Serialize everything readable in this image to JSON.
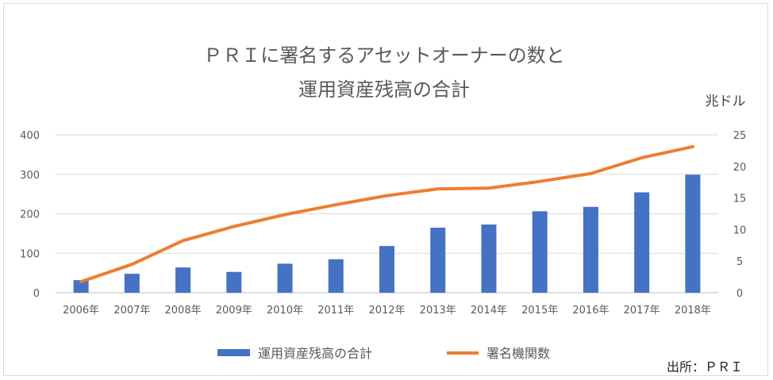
{
  "chart_data": {
    "type": "bar",
    "title_line1": "ＰＲＩに署名するアセットオーナーの数と",
    "title_line2": "運用資産残高の合計",
    "right_axis_unit": "兆ドル",
    "source": "出所：ＰＲＩ",
    "categories": [
      "2006年",
      "2007年",
      "2008年",
      "2009年",
      "2010年",
      "2011年",
      "2012年",
      "2013年",
      "2014年",
      "2015年",
      "2016年",
      "2017年",
      "2018年"
    ],
    "left_axis": {
      "range": [
        0,
        400
      ],
      "ticks": [
        "0",
        "100",
        "200",
        "300",
        "400"
      ]
    },
    "right_axis": {
      "range": [
        0,
        25
      ],
      "ticks": [
        "0",
        "5",
        "10",
        "15",
        "20",
        "25"
      ]
    },
    "grid": true,
    "legend_position": "bottom",
    "series": [
      {
        "name": "運用資産残高の合計",
        "type": "bar",
        "axis": "right",
        "color": "#4472c4",
        "values": [
          2.0,
          3.0,
          4.0,
          3.3,
          4.6,
          5.3,
          7.4,
          10.3,
          10.8,
          12.9,
          13.6,
          15.9,
          18.7
        ]
      },
      {
        "name": "署名機関数",
        "type": "line",
        "axis": "left",
        "color": "#ed7d31",
        "values": [
          28,
          72,
          132,
          168,
          198,
          223,
          246,
          263,
          265,
          282,
          302,
          342,
          370
        ]
      }
    ]
  }
}
